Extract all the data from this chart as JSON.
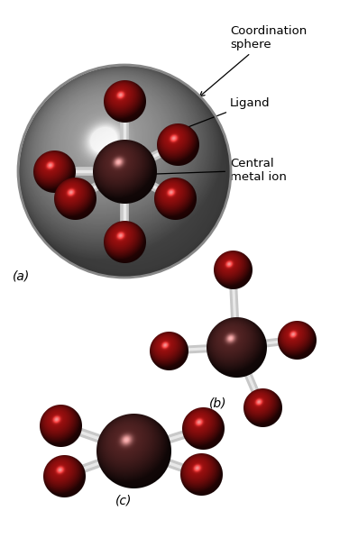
{
  "bg_color": "#ffffff",
  "central_color_rgb": [
    112,
    48,
    48
  ],
  "ligand_color_rgb": [
    210,
    20,
    20
  ],
  "bond_color": "#d8d8d8",
  "labels": {
    "coord_sphere": "Coordination\nsphere",
    "ligand": "Ligand",
    "central": "Central\nmetal ion",
    "a": "(a)",
    "b": "(b)",
    "c": "(c)"
  },
  "annotation_fontsize": 9.5,
  "label_fontsize": 10,
  "figsize": [
    3.87,
    5.97
  ],
  "dpi": 100
}
